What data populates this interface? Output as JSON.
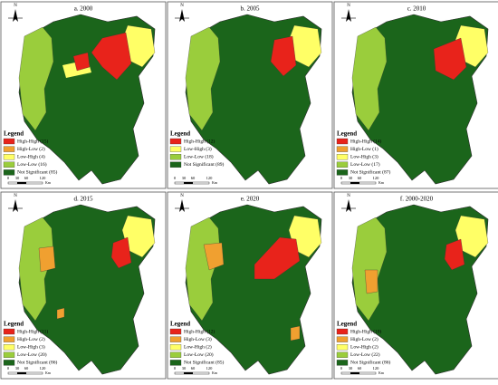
{
  "panels": [
    {
      "title": "a. 2000",
      "legend_title": "Legend",
      "entries": [
        {
          "label": "High-High (15)",
          "color": "#e8231b"
        },
        {
          "label": "High-Low (2)",
          "color": "#f0a030"
        },
        {
          "label": "Low-High (4)",
          "color": "#ffff66"
        },
        {
          "label": "Low-Low (16)",
          "color": "#9acd3c"
        },
        {
          "label": "Not Significant (85)",
          "color": "#1b651b"
        }
      ]
    },
    {
      "title": "b. 2005",
      "legend_title": "Legend",
      "entries": [
        {
          "label": "High-High (12)",
          "color": "#e8231b"
        },
        {
          "label": "Low-High (3)",
          "color": "#ffff66"
        },
        {
          "label": "Low-Low (18)",
          "color": "#9acd3c"
        },
        {
          "label": "Not Significant (89)",
          "color": "#1b651b"
        }
      ]
    },
    {
      "title": "c. 2010",
      "legend_title": "Legend",
      "entries": [
        {
          "label": "High-High (14)",
          "color": "#e8231b"
        },
        {
          "label": "High-Low (1)",
          "color": "#f0a030"
        },
        {
          "label": "Low-High (3)",
          "color": "#ffff66"
        },
        {
          "label": "Low-Low (17)",
          "color": "#9acd3c"
        },
        {
          "label": "Not Significant (87)",
          "color": "#1b651b"
        }
      ]
    },
    {
      "title": "d. 2015",
      "legend_title": "Legend",
      "entries": [
        {
          "label": "High-High (11)",
          "color": "#e8231b"
        },
        {
          "label": "High-Low (2)",
          "color": "#f0a030"
        },
        {
          "label": "Low-High (3)",
          "color": "#ffff66"
        },
        {
          "label": "Low-Low (20)",
          "color": "#9acd3c"
        },
        {
          "label": "Not Significant (86)",
          "color": "#1b651b"
        }
      ]
    },
    {
      "title": "e. 2020",
      "legend_title": "Legend",
      "entries": [
        {
          "label": "High-High (12)",
          "color": "#e8231b"
        },
        {
          "label": "High-Low (3)",
          "color": "#f0a030"
        },
        {
          "label": "Low-High (2)",
          "color": "#ffff66"
        },
        {
          "label": "Low-Low (20)",
          "color": "#9acd3c"
        },
        {
          "label": "Not Significant (85)",
          "color": "#1b651b"
        }
      ]
    },
    {
      "title": "f. 2000-2020",
      "legend_title": "Legend",
      "entries": [
        {
          "label": "High-High (10)",
          "color": "#e8231b"
        },
        {
          "label": "High-Low (2)",
          "color": "#f0a030"
        },
        {
          "label": "Low-High (2)",
          "color": "#ffff66"
        },
        {
          "label": "Low-Low (22)",
          "color": "#9acd3c"
        },
        {
          "label": "Not Significant (86)",
          "color": "#1b651b"
        }
      ]
    }
  ],
  "north": "N",
  "scale_labels": [
    "0",
    "30",
    "60",
    "120"
  ],
  "scale_unit": "Km"
}
